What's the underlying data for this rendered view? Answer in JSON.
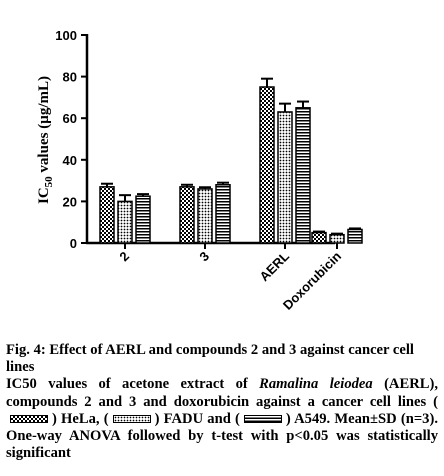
{
  "chart_data": {
    "type": "bar",
    "ylabel": "IC",
    "ylabel_sub": "50",
    "ylabel_rest": " values (µg/mL)",
    "ylim": [
      0,
      100
    ],
    "yticks": [
      "0",
      "20",
      "40",
      "60",
      "80",
      "100"
    ],
    "categories": [
      "2",
      "3",
      "AERL",
      "Doxorubicin"
    ],
    "series": [
      {
        "name": "HeLa",
        "pattern": "checker",
        "values": [
          27,
          27,
          75,
          5
        ],
        "errors": [
          1.5,
          1,
          4,
          0.5
        ]
      },
      {
        "name": "FADU",
        "pattern": "dots",
        "values": [
          20,
          26,
          63,
          4
        ],
        "errors": [
          3,
          0.8,
          4,
          0.5
        ]
      },
      {
        "name": "A549",
        "pattern": "hstripes",
        "values": [
          22.5,
          28,
          65,
          6.5
        ],
        "errors": [
          1,
          1,
          3,
          0.5
        ]
      }
    ]
  },
  "caption": {
    "title": "Fig. 4: Effect of AERL and compounds 2 and 3 against cancer cell lines",
    "body_a": "IC50 values of acetone extract of ",
    "body_italic": "Ramalina leiodea",
    "body_b": " (AERL), compounds 2 and 3 and doxorubicin against a cancer cell lines (",
    "legend_1": ") HeLa, (",
    "legend_2": ") FADU and (",
    "legend_3": ") A549. Mean±SD (n=3). One-way ANOVA followed by t-test with p<0.05 was statistically significant"
  }
}
